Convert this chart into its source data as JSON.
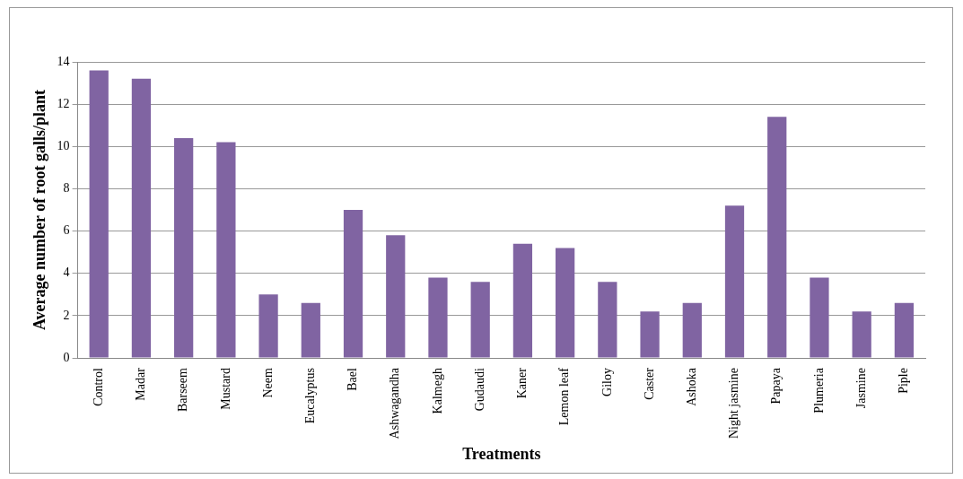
{
  "chart_data": {
    "type": "bar",
    "xlabel": "Treatments",
    "ylabel": "Average number of root galls/plant",
    "categories": [
      "Control",
      "Madar",
      "Barseem",
      "Mustard",
      "Neem",
      "Eucalyptus",
      "Bael",
      "Ashwagandha",
      "Kalmegh",
      "Gudaudi",
      "Kaner",
      "Lemon leaf",
      "Giloy",
      "Caster",
      "Ashoka",
      "Night jasmine",
      "Papaya",
      "Plumeria",
      "Jasmine",
      "Piple"
    ],
    "values": [
      13.6,
      13.2,
      10.4,
      10.2,
      3.0,
      2.6,
      7.0,
      5.8,
      3.8,
      3.6,
      5.4,
      5.2,
      3.6,
      2.2,
      2.6,
      7.2,
      11.4,
      3.8,
      2.2,
      2.6
    ],
    "color": "#8064a2",
    "ylim": [
      0,
      14
    ],
    "yticks": [
      0,
      2,
      4,
      6,
      8,
      10,
      12,
      14
    ],
    "grid": "y",
    "legend": false
  }
}
